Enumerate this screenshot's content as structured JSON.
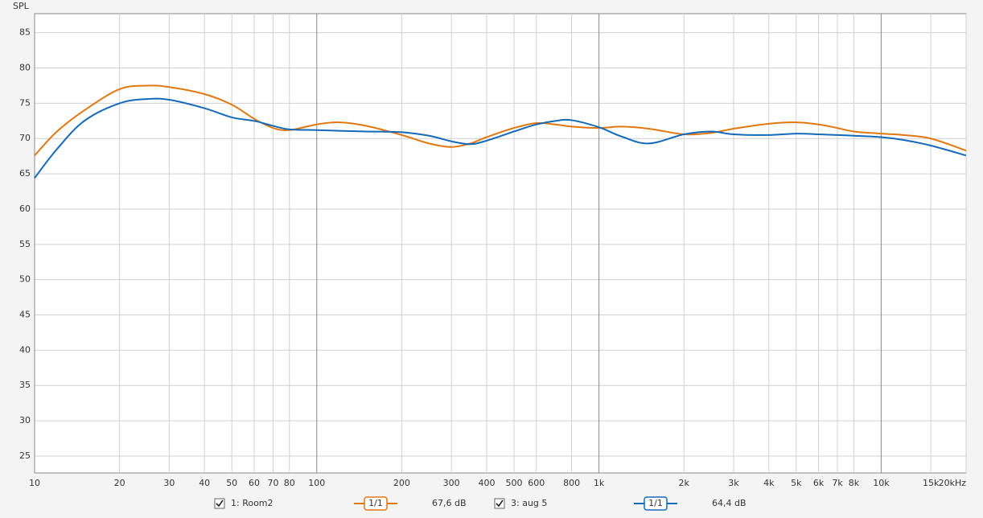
{
  "chart_data": {
    "type": "line",
    "ylabel": "SPL",
    "log_x": true,
    "grid": true,
    "xlim": [
      10,
      20000
    ],
    "ylim": [
      22.6,
      87.7
    ],
    "yticks": [
      25,
      30,
      35,
      40,
      45,
      50,
      55,
      60,
      65,
      70,
      75,
      80,
      85
    ],
    "xticks": [
      10,
      20,
      30,
      40,
      50,
      60,
      70,
      80,
      100,
      200,
      300,
      400,
      500,
      600,
      800,
      {
        "value": 1000,
        "label": "1k"
      },
      {
        "value": 2000,
        "label": "2k"
      },
      {
        "value": 3000,
        "label": "3k"
      },
      {
        "value": 4000,
        "label": "4k"
      },
      {
        "value": 5000,
        "label": "5k"
      },
      {
        "value": 6000,
        "label": "6k"
      },
      {
        "value": 7000,
        "label": "7k"
      },
      {
        "value": 8000,
        "label": "8k"
      },
      {
        "value": 10000,
        "label": "10k"
      },
      {
        "value": 15000,
        "label": "15k"
      },
      {
        "value": 20000,
        "label": "20kHz"
      }
    ],
    "x": [
      10,
      12,
      15,
      20,
      25,
      30,
      40,
      50,
      60,
      70,
      80,
      100,
      120,
      150,
      200,
      250,
      300,
      350,
      400,
      500,
      600,
      700,
      800,
      1000,
      1200,
      1500,
      2000,
      2500,
      3000,
      4000,
      5000,
      6000,
      7000,
      8000,
      10000,
      12000,
      15000,
      20000
    ],
    "series": [
      {
        "name": "1: Room2",
        "color": "#e07810",
        "smoothing": "1/1",
        "level": "67,6 dB",
        "values": [
          67.6,
          71,
          74,
          77,
          77.5,
          77.3,
          76.3,
          74.8,
          72.8,
          71.5,
          71.2,
          72,
          72.3,
          71.8,
          70.5,
          69.3,
          68.8,
          69.3,
          70.2,
          71.5,
          72.2,
          72,
          71.7,
          71.5,
          71.7,
          71.4,
          70.6,
          70.8,
          71.4,
          72.1,
          72.3,
          72,
          71.5,
          71,
          70.7,
          70.5,
          70,
          68.3
        ]
      },
      {
        "name": "3: aug 5",
        "color": "#1469b8",
        "smoothing": "1/1",
        "level": "64,4 dB",
        "values": [
          64.4,
          68.5,
          72.5,
          75,
          75.6,
          75.5,
          74.3,
          73,
          72.5,
          71.8,
          71.3,
          71.2,
          71.1,
          71,
          70.9,
          70.4,
          69.6,
          69.2,
          69.7,
          71,
          72,
          72.5,
          72.6,
          71.6,
          70.3,
          69.3,
          70.6,
          71,
          70.6,
          70.5,
          70.7,
          70.6,
          70.5,
          70.4,
          70.2,
          69.8,
          69,
          67.6
        ]
      }
    ]
  }
}
